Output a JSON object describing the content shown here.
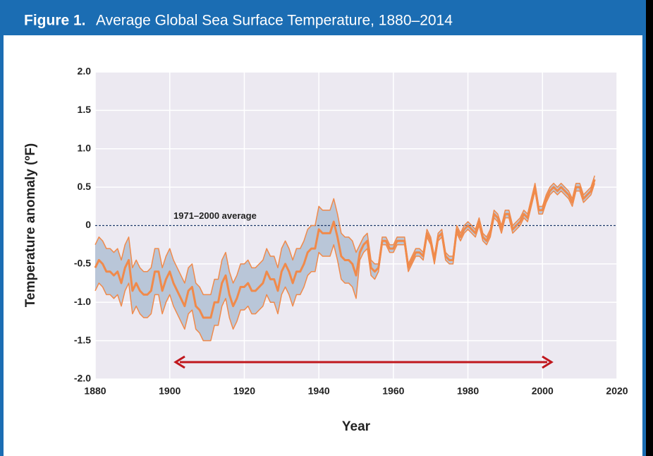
{
  "chart_data": {
    "type": "band_line",
    "figure_label": "Figure 1.",
    "title": "Average Global Sea Surface Temperature, 1880–2014",
    "xlabel": "Year",
    "ylabel": "Temperature anomaly (ºF)",
    "reference_line": {
      "value": 0,
      "label": "1971–2000 average"
    },
    "xlim": [
      1880,
      2020
    ],
    "xticks": [
      1880,
      1900,
      1920,
      1940,
      1960,
      1980,
      2000,
      2020
    ],
    "ylim": [
      -2,
      2
    ],
    "yticks": [
      {
        "value": 2,
        "label": "2.0"
      },
      1.5,
      {
        "value": 1,
        "label": "1.0"
      },
      0.5,
      0,
      -0.5,
      {
        "value": -1,
        "label": "-1.0"
      },
      -1.5,
      {
        "value": -2,
        "label": "-2.0"
      }
    ],
    "grid": true,
    "x": [
      1880,
      1881,
      1882,
      1883,
      1884,
      1885,
      1886,
      1887,
      1888,
      1889,
      1890,
      1891,
      1892,
      1893,
      1894,
      1895,
      1896,
      1897,
      1898,
      1899,
      1900,
      1901,
      1902,
      1903,
      1904,
      1905,
      1906,
      1907,
      1908,
      1909,
      1910,
      1911,
      1912,
      1913,
      1914,
      1915,
      1916,
      1917,
      1918,
      1919,
      1920,
      1921,
      1922,
      1923,
      1924,
      1925,
      1926,
      1927,
      1928,
      1929,
      1930,
      1931,
      1932,
      1933,
      1934,
      1935,
      1936,
      1937,
      1938,
      1939,
      1940,
      1941,
      1942,
      1943,
      1944,
      1945,
      1946,
      1947,
      1948,
      1949,
      1950,
      1951,
      1952,
      1953,
      1954,
      1955,
      1956,
      1957,
      1958,
      1959,
      1960,
      1961,
      1962,
      1963,
      1964,
      1965,
      1966,
      1967,
      1968,
      1969,
      1970,
      1971,
      1972,
      1973,
      1974,
      1975,
      1976,
      1977,
      1978,
      1979,
      1980,
      1981,
      1982,
      1983,
      1984,
      1985,
      1986,
      1987,
      1988,
      1989,
      1990,
      1991,
      1992,
      1993,
      1994,
      1995,
      1996,
      1997,
      1998,
      1999,
      2000,
      2001,
      2002,
      2003,
      2004,
      2005,
      2006,
      2007,
      2008,
      2009,
      2010,
      2011,
      2012,
      2013,
      2014
    ],
    "series": [
      {
        "color": "#f08a4b",
        "values": [
          -0.55,
          -0.45,
          -0.5,
          -0.6,
          -0.6,
          -0.65,
          -0.6,
          -0.75,
          -0.55,
          -0.45,
          -0.85,
          -0.75,
          -0.85,
          -0.9,
          -0.9,
          -0.85,
          -0.6,
          -0.6,
          -0.85,
          -0.7,
          -0.6,
          -0.75,
          -0.85,
          -0.95,
          -1.05,
          -0.85,
          -0.8,
          -1.05,
          -1.1,
          -1.2,
          -1.2,
          -1.2,
          -1.0,
          -1.0,
          -0.75,
          -0.65,
          -0.9,
          -1.05,
          -0.95,
          -0.8,
          -0.8,
          -0.75,
          -0.85,
          -0.85,
          -0.8,
          -0.75,
          -0.6,
          -0.7,
          -0.7,
          -0.85,
          -0.6,
          -0.5,
          -0.6,
          -0.75,
          -0.6,
          -0.6,
          -0.5,
          -0.35,
          -0.3,
          -0.3,
          -0.05,
          -0.1,
          -0.1,
          -0.1,
          0.05,
          -0.15,
          -0.4,
          -0.45,
          -0.45,
          -0.5,
          -0.65,
          -0.35,
          -0.25,
          -0.2,
          -0.55,
          -0.6,
          -0.55,
          -0.2,
          -0.2,
          -0.3,
          -0.3,
          -0.2,
          -0.2,
          -0.2,
          -0.55,
          -0.45,
          -0.35,
          -0.35,
          -0.4,
          -0.1,
          -0.2,
          -0.45,
          -0.15,
          -0.1,
          -0.4,
          -0.45,
          -0.45,
          -0.05,
          -0.15,
          -0.05,
          0,
          -0.05,
          -0.1,
          0.05,
          -0.15,
          -0.2,
          -0.1,
          0.15,
          0.1,
          -0.05,
          0.15,
          0.15,
          -0.05,
          0,
          0.05,
          0.15,
          0.1,
          0.3,
          0.5,
          0.2,
          0.2,
          0.35,
          0.45,
          0.5,
          0.45,
          0.5,
          0.45,
          0.4,
          0.3,
          0.5,
          0.5,
          0.35,
          0.4,
          0.45,
          0.6
        ]
      },
      {
        "color": "#f08a4b",
        "values": [
          -0.25,
          -0.15,
          -0.2,
          -0.3,
          -0.3,
          -0.35,
          -0.3,
          -0.45,
          -0.25,
          -0.15,
          -0.55,
          -0.45,
          -0.55,
          -0.6,
          -0.6,
          -0.55,
          -0.3,
          -0.3,
          -0.55,
          -0.4,
          -0.3,
          -0.45,
          -0.55,
          -0.65,
          -0.75,
          -0.55,
          -0.5,
          -0.75,
          -0.8,
          -0.9,
          -0.9,
          -0.9,
          -0.7,
          -0.7,
          -0.45,
          -0.35,
          -0.6,
          -0.75,
          -0.65,
          -0.5,
          -0.5,
          -0.45,
          -0.55,
          -0.55,
          -0.5,
          -0.45,
          -0.3,
          -0.4,
          -0.4,
          -0.55,
          -0.3,
          -0.2,
          -0.3,
          -0.45,
          -0.3,
          -0.3,
          -0.2,
          -0.05,
          0,
          0,
          0.25,
          0.2,
          0.2,
          0.2,
          0.35,
          0.15,
          -0.1,
          -0.15,
          -0.15,
          -0.2,
          -0.35,
          -0.25,
          -0.15,
          -0.1,
          -0.45,
          -0.5,
          -0.5,
          -0.15,
          -0.15,
          -0.25,
          -0.25,
          -0.15,
          -0.15,
          -0.15,
          -0.5,
          -0.4,
          -0.3,
          -0.3,
          -0.35,
          -0.05,
          -0.15,
          -0.4,
          -0.1,
          -0.05,
          -0.35,
          -0.4,
          -0.4,
          0,
          -0.1,
          0,
          0.05,
          0,
          -0.05,
          0.1,
          -0.1,
          -0.15,
          -0.05,
          0.2,
          0.15,
          0,
          0.2,
          0.2,
          0,
          0.05,
          0.1,
          0.2,
          0.15,
          0.35,
          0.55,
          0.25,
          0.25,
          0.4,
          0.5,
          0.55,
          0.5,
          0.55,
          0.5,
          0.45,
          0.35,
          0.55,
          0.55,
          0.4,
          0.45,
          0.5,
          0.65
        ]
      },
      {
        "color": "#f08a4b",
        "values": [
          -0.85,
          -0.75,
          -0.8,
          -0.9,
          -0.9,
          -0.95,
          -0.9,
          -1.05,
          -0.85,
          -0.75,
          -1.15,
          -1.05,
          -1.15,
          -1.2,
          -1.2,
          -1.15,
          -0.9,
          -0.9,
          -1.15,
          -1.0,
          -0.9,
          -1.05,
          -1.15,
          -1.25,
          -1.35,
          -1.15,
          -1.1,
          -1.35,
          -1.4,
          -1.5,
          -1.5,
          -1.5,
          -1.3,
          -1.3,
          -1.05,
          -0.95,
          -1.2,
          -1.35,
          -1.25,
          -1.1,
          -1.1,
          -1.05,
          -1.15,
          -1.15,
          -1.1,
          -1.05,
          -0.9,
          -1.0,
          -1.0,
          -1.15,
          -0.9,
          -0.8,
          -0.9,
          -1.05,
          -0.9,
          -0.9,
          -0.8,
          -0.65,
          -0.6,
          -0.6,
          -0.35,
          -0.4,
          -0.4,
          -0.4,
          -0.25,
          -0.45,
          -0.7,
          -0.75,
          -0.75,
          -0.8,
          -0.95,
          -0.45,
          -0.35,
          -0.3,
          -0.65,
          -0.7,
          -0.6,
          -0.25,
          -0.25,
          -0.35,
          -0.35,
          -0.25,
          -0.25,
          -0.25,
          -0.6,
          -0.5,
          -0.4,
          -0.4,
          -0.45,
          -0.15,
          -0.25,
          -0.5,
          -0.2,
          -0.15,
          -0.45,
          -0.5,
          -0.5,
          -0.1,
          -0.2,
          -0.1,
          -0.05,
          -0.1,
          -0.15,
          0,
          -0.2,
          -0.25,
          -0.15,
          0.1,
          0.05,
          -0.1,
          0.1,
          0.1,
          -0.1,
          -0.05,
          0,
          0.1,
          0.05,
          0.25,
          0.45,
          0.15,
          0.15,
          0.3,
          0.4,
          0.45,
          0.4,
          0.45,
          0.4,
          0.35,
          0.25,
          0.45,
          0.45,
          0.3,
          0.35,
          0.4,
          0.55
        ]
      }
    ],
    "band_color": "#b9c6d8",
    "plot_background": "#ece9f1",
    "reference_color": "#1f3a6b"
  }
}
